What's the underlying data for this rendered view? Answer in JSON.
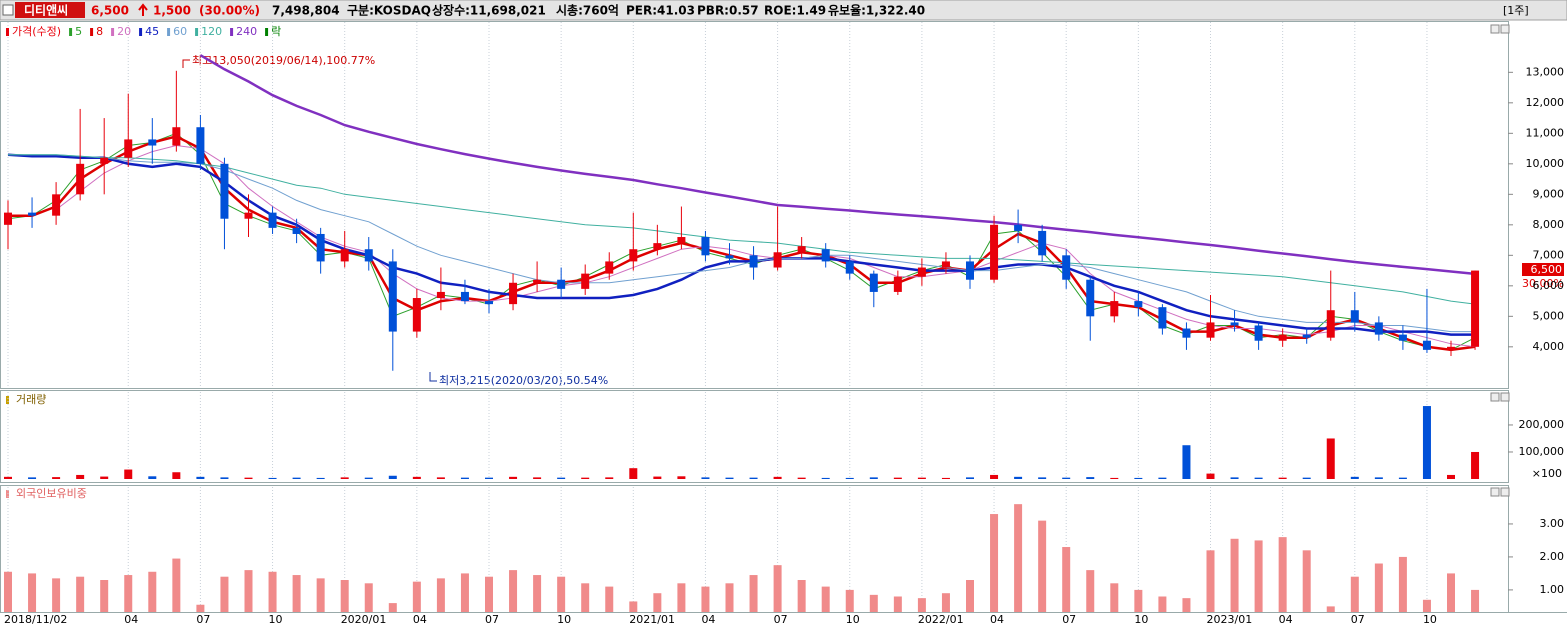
{
  "header": {
    "name": "디티앤씨",
    "price": "6,500",
    "change": "1,500",
    "change_pct": "(30.00%)",
    "volume": "7,498,804",
    "market": "구분:KOSDAQ",
    "shares": "상장수:11,698,021",
    "market_cap": "시총:760억",
    "per": "PER:41.03",
    "pbr": "PBR:0.57",
    "roe": "ROE:1.49",
    "reserve": "유보율:1,322.40",
    "period": "[1주]"
  },
  "chart_data": [
    {
      "type": "candlestick",
      "legend_title": "가격(수정)",
      "extra_legend": "락",
      "up_color": "#e8000b",
      "down_color": "#0050d8",
      "categories": [
        "2018/11/02",
        null,
        null,
        null,
        null,
        "04",
        null,
        null,
        "07",
        null,
        null,
        "10",
        null,
        null,
        "2020/01",
        null,
        null,
        "04",
        null,
        null,
        "07",
        null,
        null,
        "10",
        null,
        null,
        "2021/01",
        null,
        null,
        "04",
        null,
        null,
        "07",
        null,
        null,
        "10",
        null,
        null,
        "2022/01",
        null,
        null,
        "04",
        null,
        null,
        "07",
        null,
        null,
        "10",
        null,
        null,
        "2023/01",
        null,
        null,
        "04",
        null,
        null,
        "07",
        null,
        null,
        "10",
        null,
        null
      ],
      "open": [
        8000,
        8400,
        8300,
        9000,
        10000,
        10200,
        10800,
        10600,
        11200,
        10000,
        8200,
        8400,
        7900,
        7700,
        6800,
        7200,
        6800,
        4500,
        5600,
        5800,
        5500,
        5400,
        6100,
        6200,
        5900,
        6400,
        6800,
        7200,
        7400,
        7600,
        7000,
        7000,
        6600,
        7100,
        7200,
        6800,
        6400,
        5800,
        6300,
        6600,
        6800,
        6200,
        8000,
        7800,
        7000,
        6200,
        5000,
        5500,
        5300,
        4600,
        4300,
        4800,
        4700,
        4200,
        4400,
        4300,
        5200,
        4800,
        4400,
        4200,
        3900,
        4000
      ],
      "high": [
        8800,
        8900,
        9400,
        11800,
        11500,
        12300,
        11500,
        13050,
        11600,
        10200,
        9000,
        8600,
        8200,
        7900,
        7800,
        7600,
        7200,
        5900,
        6600,
        6200,
        5900,
        6400,
        6800,
        6600,
        6700,
        7100,
        8400,
        8000,
        8600,
        7800,
        7400,
        7300,
        8600,
        7600,
        7400,
        7000,
        6500,
        6500,
        6900,
        7100,
        7000,
        8300,
        8500,
        8000,
        7200,
        6300,
        5800,
        5800,
        5400,
        4800,
        5700,
        5200,
        4800,
        4600,
        4600,
        6500,
        5800,
        5000,
        4700,
        5900,
        4200,
        6500
      ],
      "low": [
        7200,
        7900,
        8000,
        8800,
        9000,
        9900,
        10000,
        10400,
        9800,
        7200,
        7600,
        7700,
        7400,
        6400,
        6600,
        6500,
        3215,
        4300,
        5200,
        5400,
        5100,
        5200,
        5800,
        5600,
        5700,
        6200,
        6500,
        7000,
        7200,
        6800,
        6700,
        6200,
        6500,
        6900,
        6600,
        6200,
        5300,
        5700,
        6000,
        6400,
        5900,
        6100,
        7400,
        6800,
        5900,
        4200,
        4800,
        5000,
        4400,
        3900,
        4200,
        4500,
        3900,
        4000,
        4100,
        4200,
        4500,
        4200,
        3900,
        3800,
        3700,
        3900
      ],
      "close": [
        8400,
        8300,
        9000,
        10000,
        10200,
        10800,
        10600,
        11200,
        10000,
        8200,
        8400,
        7900,
        7700,
        6800,
        7200,
        6800,
        4500,
        5600,
        5800,
        5500,
        5400,
        6100,
        6200,
        5900,
        6400,
        6800,
        7200,
        7400,
        7600,
        7000,
        6900,
        6600,
        7100,
        7300,
        6800,
        6400,
        5800,
        6300,
        6600,
        6800,
        6200,
        8000,
        7800,
        7000,
        6200,
        5000,
        5500,
        5300,
        4600,
        4300,
        4800,
        4700,
        4200,
        4400,
        4300,
        5200,
        4800,
        4400,
        4200,
        3900,
        4000,
        6500
      ],
      "series": [
        {
          "name": "5",
          "color": "#2ca02c",
          "width": 1,
          "values": [
            8200,
            8300,
            8800,
            9800,
            10100,
            10600,
            10700,
            11000,
            10300,
            8700,
            8300,
            8000,
            7800,
            7000,
            7100,
            6900,
            5000,
            5300,
            5700,
            5600,
            5400,
            6000,
            6200,
            6000,
            6300,
            6700,
            7100,
            7300,
            7500,
            7100,
            6900,
            6700,
            7000,
            7200,
            6900,
            6500,
            5900,
            6200,
            6500,
            6700,
            6300,
            7700,
            7800,
            7100,
            6300,
            5200,
            5400,
            5300,
            4700,
            4400,
            4700,
            4700,
            4300,
            4400,
            4300,
            5000,
            4900,
            4500,
            4200,
            4000,
            3900,
            4300
          ]
        },
        {
          "name": "8",
          "color": "#dd0000",
          "width": 2.5,
          "values": [
            8300,
            8300,
            8600,
            9500,
            10000,
            10400,
            10700,
            10900,
            10500,
            9200,
            8500,
            8100,
            7900,
            7200,
            7100,
            7000,
            5600,
            5200,
            5500,
            5600,
            5500,
            5800,
            6100,
            6100,
            6200,
            6500,
            6900,
            7200,
            7400,
            7200,
            7000,
            6800,
            6900,
            7100,
            7000,
            6700,
            6100,
            6100,
            6400,
            6600,
            6500,
            7200,
            7700,
            7400,
            6600,
            5500,
            5400,
            5300,
            4900,
            4500,
            4500,
            4700,
            4400,
            4300,
            4300,
            4700,
            4900,
            4600,
            4300,
            4000,
            3900,
            4000
          ]
        },
        {
          "name": "20",
          "color": "#d070c0",
          "width": 1,
          "values": [
            null,
            null,
            8500,
            9100,
            9700,
            10100,
            10400,
            10600,
            10500,
            10000,
            9200,
            8600,
            8100,
            7600,
            7300,
            7100,
            6400,
            5900,
            5600,
            5500,
            5500,
            5600,
            5800,
            6000,
            6100,
            6300,
            6600,
            6900,
            7200,
            7300,
            7200,
            7000,
            6900,
            6900,
            7000,
            6900,
            6600,
            6300,
            6300,
            6400,
            6500,
            6800,
            7100,
            7400,
            7200,
            6400,
            5800,
            5500,
            5200,
            4900,
            4700,
            4600,
            4600,
            4500,
            4400,
            4500,
            4700,
            4700,
            4500,
            4300,
            4100,
            4000
          ]
        },
        {
          "name": "45",
          "color": "#1020c0",
          "width": 2.5,
          "values": [
            10300,
            10250,
            10250,
            10200,
            10200,
            10000,
            9900,
            10000,
            9900,
            9400,
            8800,
            8300,
            8000,
            7500,
            7200,
            7000,
            6600,
            6400,
            6100,
            6000,
            5800,
            5700,
            5600,
            5600,
            5600,
            5600,
            5700,
            5900,
            6200,
            6600,
            6800,
            6800,
            6900,
            6900,
            6900,
            6800,
            6700,
            6600,
            6500,
            6500,
            6500,
            6600,
            6700,
            6700,
            6600,
            6300,
            6000,
            5800,
            5500,
            5200,
            5000,
            4900,
            4800,
            4700,
            4600,
            4600,
            4600,
            4500,
            4500,
            4500,
            4400,
            4400
          ]
        },
        {
          "name": "60",
          "color": "#70a0d0",
          "width": 1,
          "values": [
            10300,
            10300,
            10300,
            10250,
            10200,
            10100,
            10050,
            10050,
            10000,
            9800,
            9500,
            9200,
            8800,
            8500,
            8300,
            8100,
            7700,
            7300,
            7000,
            6800,
            6600,
            6400,
            6200,
            6100,
            6100,
            6100,
            6200,
            6300,
            6400,
            6500,
            6600,
            6800,
            6900,
            6900,
            7000,
            7000,
            6900,
            6800,
            6700,
            6600,
            6500,
            6500,
            6600,
            6700,
            6700,
            6600,
            6400,
            6200,
            6000,
            5800,
            5500,
            5200,
            5000,
            4900,
            4800,
            4800,
            4800,
            4700,
            4700,
            4600,
            4500,
            4500
          ]
        },
        {
          "name": "120",
          "color": "#40b0a0",
          "width": 1,
          "values": [
            10300,
            10300,
            10300,
            10250,
            10200,
            10200,
            10150,
            10100,
            10000,
            9900,
            9700,
            9500,
            9300,
            9200,
            9000,
            8900,
            8800,
            8700,
            8600,
            8500,
            8400,
            8300,
            8200,
            8100,
            8000,
            7950,
            7900,
            7800,
            7700,
            7600,
            7500,
            7450,
            7400,
            7300,
            7200,
            7100,
            7050,
            7000,
            6950,
            6900,
            6900,
            6900,
            6850,
            6800,
            6750,
            6700,
            6650,
            6600,
            6550,
            6500,
            6450,
            6400,
            6350,
            6300,
            6200,
            6100,
            6000,
            5900,
            5800,
            5650,
            5500,
            5400
          ]
        },
        {
          "name": "240",
          "color": "#8030c0",
          "width": 2.5,
          "values": [
            null,
            null,
            null,
            null,
            null,
            null,
            null,
            null,
            13560,
            13100,
            12700,
            12250,
            11900,
            11600,
            11270,
            11050,
            10850,
            10650,
            10480,
            10320,
            10170,
            10030,
            9900,
            9780,
            9670,
            9570,
            9470,
            9330,
            9200,
            9060,
            8930,
            8790,
            8650,
            8590,
            8530,
            8470,
            8400,
            8340,
            8280,
            8220,
            8150,
            8090,
            8010,
            7920,
            7840,
            7760,
            7670,
            7590,
            7510,
            7420,
            7340,
            7250,
            7150,
            7060,
            6970,
            6870,
            6780,
            6700,
            6620,
            6550,
            6470,
            6390
          ]
        }
      ],
      "ylim": [
        2650,
        14650
      ],
      "yticks": [
        {
          "value": 4000,
          "label": "4,000"
        },
        {
          "value": 5000,
          "label": "5,000"
        },
        {
          "value": 6000,
          "label": "6,000"
        },
        {
          "value": 7000,
          "label": "7,000"
        },
        {
          "value": 8000,
          "label": "8,000"
        },
        {
          "value": 9000,
          "label": "9,000"
        },
        {
          "value": 10000,
          "label": "10,000"
        },
        {
          "value": 11000,
          "label": "11,000"
        },
        {
          "value": 12000,
          "label": "12,000"
        },
        {
          "value": 13000,
          "label": "13,000"
        }
      ],
      "annotations": [
        "최고13,050(2019/06/14),100.77%",
        "최저3,215(2020/03/20),50.54%"
      ],
      "price_label": "6,500",
      "pct_label": "30.00%"
    },
    {
      "type": "bar",
      "title": "거래량",
      "unit_label": "×100",
      "values": [
        8000,
        6000,
        7000,
        15000,
        9000,
        35000,
        10000,
        25000,
        8000,
        6000,
        5000,
        4000,
        5000,
        4000,
        6000,
        5000,
        12000,
        8000,
        6000,
        5000,
        5000,
        8000,
        6000,
        5000,
        5000,
        6000,
        40000,
        9000,
        10000,
        6000,
        5000,
        5000,
        8000,
        5000,
        4000,
        4000,
        6000,
        5000,
        5000,
        4000,
        6000,
        15000,
        8000,
        6000,
        5000,
        7000,
        4000,
        4000,
        5000,
        125000,
        20000,
        6000,
        5000,
        5000,
        5000,
        150000,
        8000,
        6000,
        5000,
        270000,
        15000,
        100000
      ],
      "ylim": [
        0,
        322000
      ],
      "yticks": [
        {
          "value": 100000,
          "label": "100,000"
        },
        {
          "value": 200000,
          "label": "200,000"
        }
      ]
    },
    {
      "type": "bar",
      "title": "외국인보유비중",
      "color": "#f08a8a",
      "values": [
        1.55,
        1.5,
        1.35,
        1.4,
        1.3,
        1.45,
        1.55,
        1.95,
        0.55,
        1.4,
        1.6,
        1.55,
        1.45,
        1.35,
        1.3,
        1.2,
        0.6,
        1.25,
        1.35,
        1.5,
        1.4,
        1.6,
        1.45,
        1.4,
        1.2,
        1.1,
        0.65,
        0.9,
        1.2,
        1.1,
        1.2,
        1.45,
        1.75,
        1.3,
        1.1,
        1.0,
        0.85,
        0.8,
        0.75,
        0.9,
        1.3,
        3.3,
        3.6,
        3.1,
        2.3,
        1.6,
        1.2,
        1.0,
        0.8,
        0.75,
        2.2,
        2.55,
        2.5,
        2.6,
        2.2,
        0.5,
        1.4,
        1.8,
        2.0,
        0.7,
        1.5,
        1.0
      ],
      "ylim": [
        0.33,
        4.12
      ],
      "yticks": [
        {
          "value": 1,
          "label": "1.00"
        },
        {
          "value": 2,
          "label": "2.00"
        },
        {
          "value": 3,
          "label": "3.00"
        }
      ]
    }
  ]
}
